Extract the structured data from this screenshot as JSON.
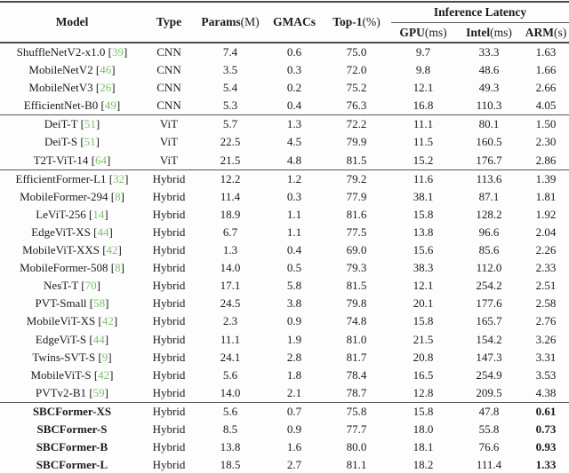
{
  "table": {
    "colors": {
      "citation_green": "#7cc36a",
      "text": "#1b1b1b",
      "rule_gray": "#4a4a4a"
    },
    "header": {
      "model": {
        "bold": "Model",
        "rest": ""
      },
      "type": {
        "bold": "Type",
        "rest": ""
      },
      "params": {
        "bold": "Params",
        "rest": "(M)"
      },
      "gmacs": {
        "bold": "GMACs",
        "rest": ""
      },
      "top1": {
        "bold": "Top-1",
        "rest": "(%)"
      },
      "latency_group": "Inference Latency",
      "gpu": {
        "bold": "GPU",
        "rest": "(ms)"
      },
      "intel": {
        "bold": "Intel",
        "rest": "(ms)"
      },
      "arm": {
        "bold": "ARM",
        "rest": "(s)"
      }
    },
    "rows": [
      {
        "model": "ShuffleNetV2-x1.0",
        "cite": "39",
        "type": "CNN",
        "params": "7.4",
        "gmacs": "0.6",
        "top1": "75.0",
        "gpu": "9.7",
        "intel": "33.3",
        "arm": "1.63",
        "emphasize": false,
        "section_end": false
      },
      {
        "model": "MobileNetV2",
        "cite": "46",
        "type": "CNN",
        "params": "3.5",
        "gmacs": "0.3",
        "top1": "72.0",
        "gpu": "9.8",
        "intel": "48.6",
        "arm": "1.66",
        "emphasize": false,
        "section_end": false
      },
      {
        "model": "MobileNetV3",
        "cite": "26",
        "type": "CNN",
        "params": "5.4",
        "gmacs": "0.2",
        "top1": "75.2",
        "gpu": "12.1",
        "intel": "49.3",
        "arm": "2.66",
        "emphasize": false,
        "section_end": false
      },
      {
        "model": "EfficientNet-B0",
        "cite": "49",
        "type": "CNN",
        "params": "5.3",
        "gmacs": "0.4",
        "top1": "76.3",
        "gpu": "16.8",
        "intel": "110.3",
        "arm": "4.05",
        "emphasize": false,
        "section_end": true
      },
      {
        "model": "DeiT-T",
        "cite": "51",
        "type": "ViT",
        "params": "5.7",
        "gmacs": "1.3",
        "top1": "72.2",
        "gpu": "11.1",
        "intel": "80.1",
        "arm": "1.50",
        "emphasize": false,
        "section_end": false
      },
      {
        "model": "DeiT-S",
        "cite": "51",
        "type": "ViT",
        "params": "22.5",
        "gmacs": "4.5",
        "top1": "79.9",
        "gpu": "11.5",
        "intel": "160.5",
        "arm": "2.30",
        "emphasize": false,
        "section_end": false
      },
      {
        "model": "T2T-ViT-14",
        "cite": "64",
        "type": "ViT",
        "params": "21.5",
        "gmacs": "4.8",
        "top1": "81.5",
        "gpu": "15.2",
        "intel": "176.7",
        "arm": "2.86",
        "emphasize": false,
        "section_end": true
      },
      {
        "model": "EfficientFormer-L1",
        "cite": "32",
        "type": "Hybrid",
        "params": "12.2",
        "gmacs": "1.2",
        "top1": "79.2",
        "gpu": "11.6",
        "intel": "113.6",
        "arm": "1.39",
        "emphasize": false,
        "section_end": false
      },
      {
        "model": "MobileFormer-294",
        "cite": "8",
        "type": "Hybrid",
        "params": "11.4",
        "gmacs": "0.3",
        "top1": "77.9",
        "gpu": "38.1",
        "intel": "87.1",
        "arm": "1.81",
        "emphasize": false,
        "section_end": false
      },
      {
        "model": "LeViT-256",
        "cite": "14",
        "type": "Hybrid",
        "params": "18.9",
        "gmacs": "1.1",
        "top1": "81.6",
        "gpu": "15.8",
        "intel": "128.2",
        "arm": "1.92",
        "emphasize": false,
        "section_end": false
      },
      {
        "model": "EdgeViT-XS",
        "cite": "44",
        "type": "Hybrid",
        "params": "6.7",
        "gmacs": "1.1",
        "top1": "77.5",
        "gpu": "13.8",
        "intel": "96.6",
        "arm": "2.04",
        "emphasize": false,
        "section_end": false
      },
      {
        "model": "MobileViT-XXS",
        "cite": "42",
        "type": "Hybrid",
        "params": "1.3",
        "gmacs": "0.4",
        "top1": "69.0",
        "gpu": "15.6",
        "intel": "85.6",
        "arm": "2.26",
        "emphasize": false,
        "section_end": false
      },
      {
        "model": "MobileFormer-508",
        "cite": "8",
        "type": "Hybrid",
        "params": "14.0",
        "gmacs": "0.5",
        "top1": "79.3",
        "gpu": "38.3",
        "intel": "112.0",
        "arm": "2.33",
        "emphasize": false,
        "section_end": false
      },
      {
        "model": "NesT-T",
        "cite": "70",
        "type": "Hybrid",
        "params": "17.1",
        "gmacs": "5.8",
        "top1": "81.5",
        "gpu": "12.1",
        "intel": "254.2",
        "arm": "2.51",
        "emphasize": false,
        "section_end": false
      },
      {
        "model": "PVT-Small",
        "cite": "58",
        "type": "Hybrid",
        "params": "24.5",
        "gmacs": "3.8",
        "top1": "79.8",
        "gpu": "20.1",
        "intel": "177.6",
        "arm": "2.58",
        "emphasize": false,
        "section_end": false
      },
      {
        "model": "MobileViT-XS",
        "cite": "42",
        "type": "Hybrid",
        "params": "2.3",
        "gmacs": "0.9",
        "top1": "74.8",
        "gpu": "15.8",
        "intel": "165.7",
        "arm": "2.76",
        "emphasize": false,
        "section_end": false
      },
      {
        "model": "EdgeViT-S",
        "cite": "44",
        "type": "Hybrid",
        "params": "11.1",
        "gmacs": "1.9",
        "top1": "81.0",
        "gpu": "21.5",
        "intel": "154.2",
        "arm": "3.26",
        "emphasize": false,
        "section_end": false
      },
      {
        "model": "Twins-SVT-S",
        "cite": "9",
        "type": "Hybrid",
        "params": "24.1",
        "gmacs": "2.8",
        "top1": "81.7",
        "gpu": "20.8",
        "intel": "147.3",
        "arm": "3.31",
        "emphasize": false,
        "section_end": false
      },
      {
        "model": "MobileViT-S",
        "cite": "42",
        "type": "Hybrid",
        "params": "5.6",
        "gmacs": "1.8",
        "top1": "78.4",
        "gpu": "16.5",
        "intel": "254.9",
        "arm": "3.53",
        "emphasize": false,
        "section_end": false
      },
      {
        "model": "PVTv2-B1",
        "cite": "59",
        "type": "Hybrid",
        "params": "14.0",
        "gmacs": "2.1",
        "top1": "78.7",
        "gpu": "12.8",
        "intel": "209.5",
        "arm": "4.38",
        "emphasize": false,
        "section_end": true
      },
      {
        "model": "SBCFormer-XS",
        "cite": "",
        "type": "Hybrid",
        "params": "5.6",
        "gmacs": "0.7",
        "top1": "75.8",
        "gpu": "15.8",
        "intel": "47.8",
        "arm": "0.61",
        "emphasize": true,
        "section_end": false
      },
      {
        "model": "SBCFormer-S",
        "cite": "",
        "type": "Hybrid",
        "params": "8.5",
        "gmacs": "0.9",
        "top1": "77.7",
        "gpu": "18.0",
        "intel": "55.8",
        "arm": "0.73",
        "emphasize": true,
        "section_end": false
      },
      {
        "model": "SBCFormer-B",
        "cite": "",
        "type": "Hybrid",
        "params": "13.8",
        "gmacs": "1.6",
        "top1": "80.0",
        "gpu": "18.1",
        "intel": "76.6",
        "arm": "0.93",
        "emphasize": true,
        "section_end": false
      },
      {
        "model": "SBCFormer-L",
        "cite": "",
        "type": "Hybrid",
        "params": "18.5",
        "gmacs": "2.7",
        "top1": "81.1",
        "gpu": "18.2",
        "intel": "111.4",
        "arm": "1.33",
        "emphasize": true,
        "section_end": false
      }
    ]
  }
}
